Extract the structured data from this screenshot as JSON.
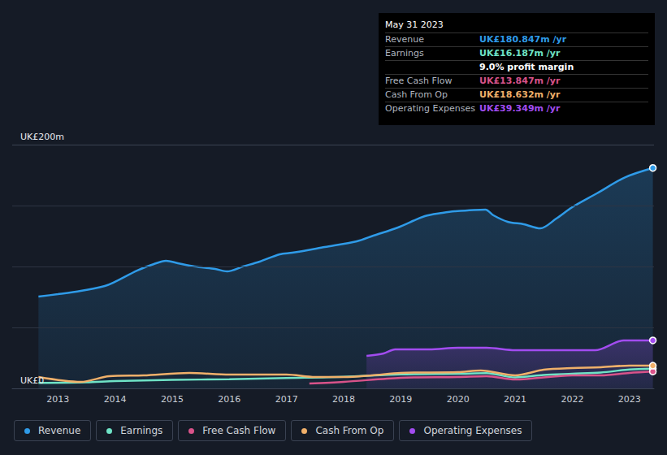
{
  "chart_data": {
    "type": "line",
    "legend": "bottom",
    "grid": true,
    "xlim": [
      2012.2,
      2023.43
    ],
    "xticks": [
      2013,
      2014,
      2015,
      2016,
      2017,
      2018,
      2019,
      2020,
      2021,
      2022,
      2023
    ],
    "ylim": [
      0,
      200
    ],
    "yticks": [
      {
        "value": 0,
        "label": "UK£0"
      },
      {
        "value": 200,
        "label": "UK£200m"
      }
    ],
    "series": [
      {
        "name": "Revenue",
        "type": "area",
        "color": "#2f9be8",
        "x": [
          2012.66,
          2013.0,
          2013.4,
          2013.82,
          2013.97,
          2014.39,
          2014.68,
          2014.89,
          2015.1,
          2015.39,
          2015.75,
          2015.96,
          2016.24,
          2016.53,
          2016.88,
          2017.1,
          2017.67,
          2018.23,
          2018.52,
          2018.95,
          2019.42,
          2019.73,
          2019.94,
          2020.48,
          2020.62,
          2020.87,
          2021.15,
          2021.44,
          2021.72,
          2022.0,
          2022.43,
          2022.93,
          2023.41
        ],
        "values": [
          75.3,
          77.3,
          80,
          84,
          86.7,
          96.7,
          102,
          104.7,
          102.7,
          100,
          98,
          96,
          100,
          104,
          110,
          111.3,
          116,
          120.7,
          125.3,
          132,
          141.3,
          144,
          145.3,
          146.7,
          142,
          136.7,
          134.7,
          131.3,
          139.3,
          148.7,
          160,
          173.3,
          180.847
        ]
      },
      {
        "name": "Earnings",
        "type": "line",
        "color": "#6fe3c6",
        "x": [
          2012.66,
          2013.5,
          2014.0,
          2015.0,
          2016.0,
          2017.0,
          2018.0,
          2019.0,
          2020.0,
          2020.5,
          2021.0,
          2021.5,
          2022.0,
          2022.5,
          2023.0,
          2023.41
        ],
        "values": [
          4.5,
          5,
          6,
          7,
          7.5,
          8.5,
          9.5,
          11.5,
          12,
          12.5,
          9,
          11,
          12,
          13,
          15.5,
          16.187
        ]
      },
      {
        "name": "Free Cash Flow",
        "type": "line",
        "color": "#d9538a",
        "x": [
          2017.4,
          2018.0,
          2019.0,
          2020.0,
          2020.5,
          2021.0,
          2022.0,
          2022.5,
          2023.0,
          2023.41
        ],
        "values": [
          4,
          5.3,
          8.7,
          9.3,
          10,
          7.3,
          10.7,
          10.7,
          12.7,
          13.847
        ]
      },
      {
        "name": "Cash From Op",
        "type": "line",
        "color": "#f0b06a",
        "x": [
          2012.66,
          2013.4,
          2013.9,
          2014.5,
          2015.3,
          2016.0,
          2017.0,
          2017.5,
          2018.0,
          2018.5,
          2019.0,
          2020.0,
          2020.4,
          2021.0,
          2021.5,
          2022.0,
          2022.5,
          2023.0,
          2023.41
        ],
        "values": [
          9.3,
          5.3,
          10,
          10.7,
          12.7,
          11.3,
          11.3,
          9.3,
          9.3,
          10.7,
          12.7,
          13.3,
          14.7,
          10.7,
          15.3,
          16.7,
          17.3,
          18.7,
          18.632
        ]
      },
      {
        "name": "Operating Expenses",
        "type": "area",
        "color": "#a24cf0",
        "x": [
          2018.4,
          2018.7,
          2018.9,
          2019.5,
          2020.0,
          2020.5,
          2021.0,
          2021.5,
          2022.0,
          2022.4,
          2022.9,
          2023.41
        ],
        "values": [
          26.7,
          28.7,
          32,
          32,
          33.3,
          33.3,
          31.3,
          31.3,
          31.3,
          31.3,
          39.3,
          39.349
        ]
      }
    ],
    "annotations": {
      "date": "May 31 2023",
      "rows": [
        {
          "label": "Revenue",
          "value": "UK£180.847m /yr",
          "color": "#2f9be8"
        },
        {
          "label": "Earnings",
          "value": "UK£16.187m /yr",
          "color": "#6fe3c6"
        },
        {
          "value": "9.0% profit margin",
          "color": "#ffffff"
        },
        {
          "label": "Free Cash Flow",
          "value": "UK£13.847m /yr",
          "color": "#d9538a"
        },
        {
          "label": "Cash From Op",
          "value": "UK£18.632m /yr",
          "color": "#f0b06a"
        },
        {
          "label": "Operating Expenses",
          "value": "UK£39.349m /yr",
          "color": "#a24cf0"
        }
      ]
    }
  }
}
